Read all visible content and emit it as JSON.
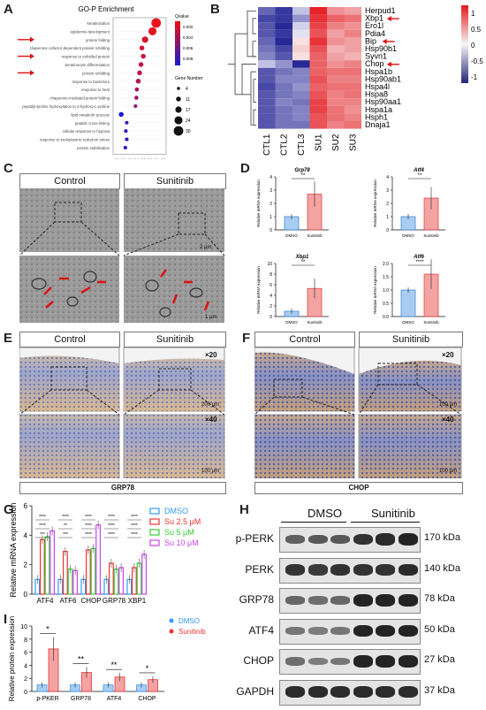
{
  "panels": {
    "A": "A",
    "B": "B",
    "C": "C",
    "D": "D",
    "E": "E",
    "F": "F",
    "G": "G",
    "H": "H",
    "I": "I"
  },
  "panelA": {
    "title": "GO-P Enrichment",
    "xlabel": "Rich Ratio",
    "qvalue_label": "Qvalue",
    "qvalue_ticks": [
      "0.002",
      "0.004",
      "0.006",
      "0.008"
    ],
    "gene_number_label": "Gene Number",
    "gene_number_ticks": [
      "4",
      "11",
      "17",
      "24",
      "30"
    ],
    "terms": [
      "keratinization",
      "epidermis development",
      "protein folding",
      "chaperone cofactor-dependent protein refolding",
      "response to unfolded protein",
      "keratinocyte differentiation",
      "protein refolding",
      "response to bacterium",
      "response to heat",
      "chaperone-mediated protein folding",
      "peptidyl-proline hydroxylation to 4-hydroxy-L-proline",
      "lipid metabolic process",
      "peptide cross-linking",
      "cellular response to hypoxia",
      "response to endoplasmic reticulum stress",
      "protein stabilization"
    ],
    "arrow_terms": [
      2,
      4,
      6
    ],
    "dots": [
      {
        "ratio": 0.86,
        "q": 0.0005,
        "n": 30
      },
      {
        "ratio": 0.78,
        "q": 0.0006,
        "n": 24
      },
      {
        "ratio": 0.62,
        "q": 0.0012,
        "n": 17
      },
      {
        "ratio": 0.55,
        "q": 0.0015,
        "n": 11
      },
      {
        "ratio": 0.58,
        "q": 0.0018,
        "n": 11
      },
      {
        "ratio": 0.53,
        "q": 0.002,
        "n": 11
      },
      {
        "ratio": 0.5,
        "q": 0.0022,
        "n": 11
      },
      {
        "ratio": 0.47,
        "q": 0.0025,
        "n": 11
      },
      {
        "ratio": 0.44,
        "q": 0.0028,
        "n": 8
      },
      {
        "ratio": 0.43,
        "q": 0.003,
        "n": 8
      },
      {
        "ratio": 0.41,
        "q": 0.0035,
        "n": 6
      },
      {
        "ratio": 0.1,
        "q": 0.008,
        "n": 11
      },
      {
        "ratio": 0.22,
        "q": 0.0065,
        "n": 6
      },
      {
        "ratio": 0.2,
        "q": 0.0068,
        "n": 6
      },
      {
        "ratio": 0.22,
        "q": 0.007,
        "n": 6
      },
      {
        "ratio": 0.19,
        "q": 0.0075,
        "n": 6
      }
    ]
  },
  "panelB": {
    "genes": [
      "Herpud1",
      "Xbp1",
      "Ero1l",
      "Pdia4",
      "Bip",
      "Hsp90b1",
      "Syvn1",
      "Chop",
      "Hspa1b",
      "Hsp90ab1",
      "Hspa4l",
      "Hspa8",
      "Hsp90aa1",
      "Hspa1a",
      "Hsph1",
      "Dnaja1"
    ],
    "arrow_genes": [
      1,
      4,
      7
    ],
    "samples": [
      "CTL1",
      "CTL2",
      "CTL3",
      "SU1",
      "SU2",
      "SU3"
    ],
    "legend_ticks": [
      "1",
      "0.5",
      "0",
      "-0.5",
      "-1"
    ],
    "values": [
      [
        -0.9,
        -1.2,
        -0.3,
        1.3,
        0.6,
        0.5
      ],
      [
        -1.1,
        -1.2,
        -0.6,
        1.2,
        0.9,
        0.8
      ],
      [
        -1.0,
        -1.3,
        -0.2,
        1.1,
        0.7,
        0.6
      ],
      [
        -1.0,
        -1.2,
        -0.1,
        1.0,
        0.5,
        0.7
      ],
      [
        -0.9,
        -1.3,
        0.1,
        1.2,
        0.6,
        0.5
      ],
      [
        -0.8,
        -1.1,
        0.2,
        1.0,
        0.4,
        0.5
      ],
      [
        -0.7,
        -1.0,
        0.1,
        0.9,
        0.5,
        0.4
      ],
      [
        -0.3,
        -0.6,
        -1.3,
        0.9,
        0.6,
        0.7
      ],
      [
        -1.0,
        -0.8,
        -0.7,
        0.9,
        0.8,
        0.8
      ],
      [
        -1.0,
        -0.7,
        -0.7,
        1.0,
        0.7,
        0.7
      ],
      [
        -1.1,
        -0.8,
        -0.6,
        0.9,
        0.8,
        0.8
      ],
      [
        -1.0,
        -0.8,
        -0.7,
        1.0,
        0.7,
        0.8
      ],
      [
        -1.0,
        -0.7,
        -0.8,
        1.1,
        0.7,
        0.7
      ],
      [
        -1.0,
        -0.8,
        -0.7,
        1.1,
        0.8,
        0.6
      ],
      [
        -1.0,
        -0.8,
        -0.7,
        1.0,
        0.8,
        0.7
      ],
      [
        -1.0,
        -0.8,
        -0.8,
        1.0,
        0.7,
        0.8
      ]
    ]
  },
  "panelC": {
    "control": "Control",
    "sunitinib": "Sunitinib",
    "scale_top": "2 μm",
    "scale_bottom": "1 μm"
  },
  "panelD": {
    "ylabel": "Relative mRNA expression",
    "groups": [
      "DMSO",
      "Sunitinib"
    ],
    "charts": [
      {
        "gene": "Grp78",
        "values": [
          1.0,
          2.7
        ],
        "ylim": [
          0,
          4
        ],
        "ticks": [
          "0",
          "1",
          "2",
          "3",
          "4"
        ],
        "sig": "**"
      },
      {
        "gene": "Atf4",
        "values": [
          1.0,
          2.4
        ],
        "ylim": [
          0,
          4
        ],
        "ticks": [
          "0",
          "1",
          "2",
          "3",
          "4"
        ],
        "sig": "**"
      },
      {
        "gene": "Xbp1",
        "values": [
          1.0,
          5.3
        ],
        "ylim": [
          0,
          10
        ],
        "ticks": [
          "0",
          "2",
          "4",
          "6",
          "8",
          "10"
        ],
        "sig": "**"
      },
      {
        "gene": "Atf6",
        "values": [
          1.0,
          1.6
        ],
        "ylim": [
          0,
          2.0
        ],
        "ticks": [
          "0.0",
          "0.5",
          "1.0",
          "1.5",
          "2.0"
        ],
        "sig": "****"
      }
    ]
  },
  "panelE": {
    "control": "Control",
    "sunitinib": "Sunitinib",
    "mag20": "×20",
    "mag40": "×40",
    "scale1": "200 μm",
    "scale2": "100 μm",
    "caption": "GRP78"
  },
  "panelF": {
    "control": "Control",
    "sunitinib": "Sunitinib",
    "mag20": "×20",
    "mag40": "×40",
    "scale1": "100 μm",
    "scale2": "100 μm",
    "caption": "CHOP"
  },
  "chart_data": [
    {
      "type": "bar",
      "title": "",
      "ylabel": "Relative mRNA expression",
      "ylim": [
        0,
        6
      ],
      "yticks": [
        "0",
        "2",
        "4",
        "6"
      ],
      "categories": [
        "ATF4",
        "ATF6",
        "CHOP",
        "GRP78",
        "XBP1"
      ],
      "legend_position": "top-right",
      "series": [
        {
          "name": "DMSO",
          "color": "#3399ff",
          "values": [
            1.0,
            1.0,
            1.0,
            1.0,
            1.0
          ]
        },
        {
          "name": "Su 2.5 μM",
          "color": "#ee3333",
          "values": [
            3.7,
            2.9,
            3.0,
            2.1,
            1.8
          ]
        },
        {
          "name": "Su 5 μM",
          "color": "#33cc33",
          "values": [
            3.9,
            1.7,
            3.1,
            1.7,
            2.1
          ]
        },
        {
          "name": "Su 10 μM",
          "color": "#cc44ee",
          "values": [
            4.3,
            1.6,
            4.7,
            1.8,
            2.7
          ]
        }
      ]
    },
    {
      "type": "bar",
      "title": "",
      "ylabel": "Relative protein expression",
      "ylim": [
        0,
        10
      ],
      "yticks": [
        "0",
        "2",
        "4",
        "6",
        "8",
        "10"
      ],
      "categories": [
        "p-PKER",
        "GRP78",
        "ATF4",
        "CHOP"
      ],
      "legend_position": "top-right",
      "significance": [
        "*",
        "**",
        "**",
        "*"
      ],
      "series": [
        {
          "name": "DMSO",
          "color": "#3399ff",
          "values": [
            1.0,
            1.0,
            1.0,
            1.0
          ]
        },
        {
          "name": "Sunitinib",
          "color": "#ee3333",
          "values": [
            6.5,
            2.9,
            2.2,
            1.8
          ]
        }
      ]
    }
  ],
  "panelG": {
    "sig_labels": [
      "****",
      "****",
      "***",
      "****",
      "**",
      "***",
      "****",
      "****",
      "****",
      "****",
      "****",
      "****",
      "****",
      "****",
      "****"
    ]
  },
  "panelH": {
    "dmso": "DMSO",
    "sunitinib": "Sunitinib",
    "rows": [
      {
        "name": "p-PERK",
        "kda": "170 kDa",
        "intensity": [
          0.55,
          0.6,
          0.6,
          0.85,
          0.9,
          0.95
        ]
      },
      {
        "name": "PERK",
        "kda": "140 kDa",
        "intensity": [
          0.85,
          0.8,
          0.85,
          0.85,
          0.85,
          0.9
        ]
      },
      {
        "name": "GRP78",
        "kda": "78 kDa",
        "intensity": [
          0.5,
          0.45,
          0.5,
          0.95,
          0.95,
          0.95
        ]
      },
      {
        "name": "ATF4",
        "kda": "50 kDa",
        "intensity": [
          0.4,
          0.35,
          0.4,
          0.95,
          0.95,
          0.95
        ]
      },
      {
        "name": "CHOP",
        "kda": "27 kDa",
        "intensity": [
          0.45,
          0.35,
          0.4,
          0.95,
          0.95,
          0.95
        ]
      },
      {
        "name": "GAPDH",
        "kda": "37 kDa",
        "intensity": [
          0.9,
          0.9,
          0.9,
          0.9,
          0.9,
          0.9
        ]
      }
    ]
  }
}
